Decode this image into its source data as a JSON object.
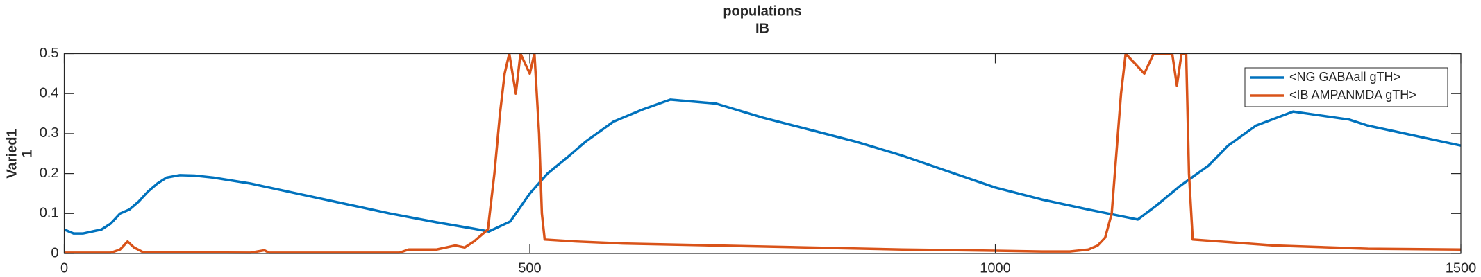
{
  "chart_data": {
    "type": "line",
    "title": "populations",
    "subtitle": "IB",
    "ylabel": [
      "Varied1",
      "1"
    ],
    "xlim": [
      0,
      1500
    ],
    "xticks": [
      0,
      500,
      1000,
      1500
    ],
    "ylim": [
      0,
      0.5
    ],
    "yticks": [
      0,
      0.1,
      0.2,
      0.3,
      0.4,
      0.5
    ],
    "grid": false,
    "legend": "upper right",
    "series": [
      {
        "name": "<NG GABAall gTH>",
        "color": "#0072bd",
        "x": [
          0,
          10,
          20,
          30,
          40,
          50,
          60,
          70,
          80,
          90,
          100,
          110,
          124,
          140,
          160,
          200,
          250,
          300,
          350,
          400,
          440,
          456,
          479,
          500,
          519,
          540,
          560,
          590,
          621,
          651,
          700,
          750,
          800,
          850,
          900,
          950,
          1000,
          1050,
          1100,
          1153,
          1173,
          1199,
          1229,
          1250,
          1280,
          1320,
          1350,
          1380,
          1400,
          1430,
          1460,
          1480,
          1500
        ],
        "values": [
          0.06,
          0.05,
          0.05,
          0.055,
          0.06,
          0.075,
          0.1,
          0.11,
          0.13,
          0.155,
          0.175,
          0.19,
          0.196,
          0.195,
          0.19,
          0.175,
          0.15,
          0.125,
          0.1,
          0.078,
          0.062,
          0.055,
          0.08,
          0.15,
          0.2,
          0.24,
          0.28,
          0.33,
          0.36,
          0.385,
          0.375,
          0.34,
          0.31,
          0.28,
          0.245,
          0.205,
          0.165,
          0.135,
          0.11,
          0.085,
          0.12,
          0.17,
          0.22,
          0.27,
          0.32,
          0.355,
          0.345,
          0.335,
          0.32,
          0.305,
          0.29,
          0.28,
          0.27
        ]
      },
      {
        "name": "<IB AMPANMDA gTH>",
        "color": "#d95319",
        "x": [
          0,
          50,
          60,
          68,
          75,
          85,
          200,
          215,
          220,
          360,
          370,
          400,
          420,
          430,
          440,
          455,
          462,
          468,
          473,
          478,
          485,
          490,
          500,
          505,
          510,
          513,
          516,
          550,
          600,
          700,
          800,
          900,
          1000,
          1050,
          1080,
          1100,
          1110,
          1118,
          1125,
          1130,
          1135,
          1140,
          1160,
          1170,
          1190,
          1195,
          1200,
          1205,
          1208,
          1212,
          1300,
          1400,
          1500
        ],
        "values": [
          0.002,
          0.002,
          0.01,
          0.03,
          0.015,
          0.003,
          0.002,
          0.008,
          0.002,
          0.002,
          0.01,
          0.01,
          0.02,
          0.015,
          0.03,
          0.06,
          0.2,
          0.35,
          0.45,
          0.5,
          0.4,
          0.5,
          0.45,
          0.5,
          0.3,
          0.1,
          0.035,
          0.03,
          0.025,
          0.02,
          0.015,
          0.01,
          0.007,
          0.005,
          0.005,
          0.01,
          0.02,
          0.04,
          0.1,
          0.25,
          0.4,
          0.5,
          0.45,
          0.5,
          0.5,
          0.42,
          0.5,
          0.5,
          0.2,
          0.035,
          0.02,
          0.012,
          0.01
        ]
      }
    ]
  }
}
